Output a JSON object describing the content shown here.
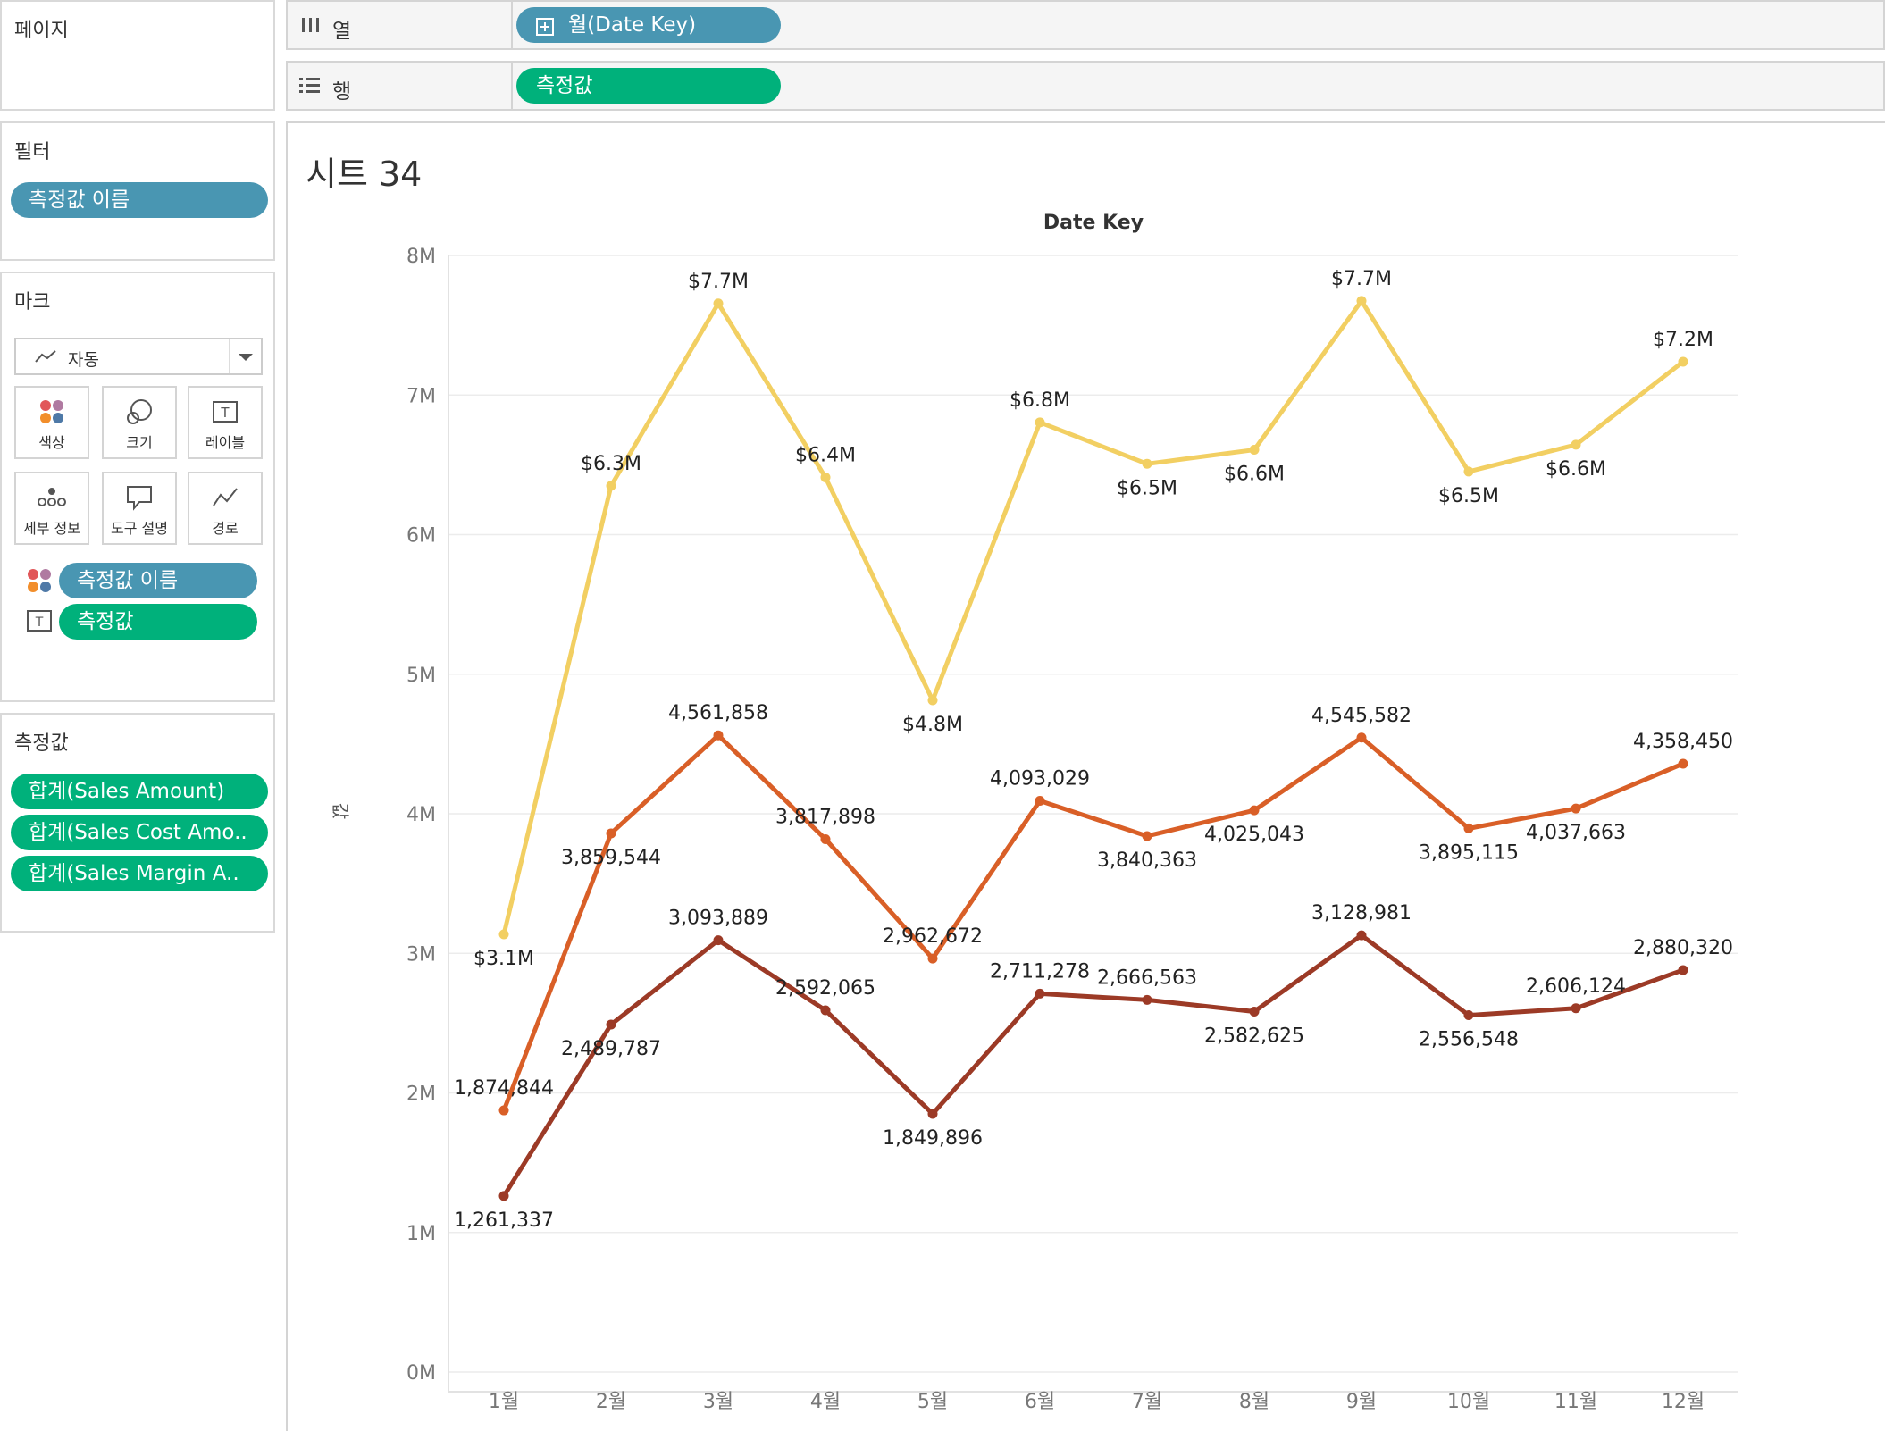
{
  "sidebar": {
    "pages_title": "페이지",
    "filters_title": "필터",
    "filter_pill": "측정값 이름",
    "marks_title": "마크",
    "mark_type": "자동",
    "mark_buttons": [
      "색상",
      "크기",
      "레이블",
      "세부 정보",
      "도구 설명",
      "경로"
    ],
    "mark_pills": [
      "측정값 이름",
      "측정값"
    ],
    "measures_title": "측정값",
    "measure_pills": [
      "합계(Sales Amount)",
      "합계(Sales Cost Amo..",
      "합계(Sales Margin A.."
    ]
  },
  "shelves": {
    "columns_label": "열",
    "columns_pill": "월(Date Key)",
    "rows_label": "행",
    "rows_pill": "측정값"
  },
  "sheet": {
    "title": "시트 34"
  },
  "colors": {
    "series": [
      "#f2cf62",
      "#d95f27",
      "#9c3a26"
    ],
    "pill_blue": "#4996b2",
    "pill_green": "#00b17b"
  },
  "chart_data": {
    "type": "line",
    "title": "Date Key",
    "xlabel": "Date Key",
    "ylabel": "값",
    "categories": [
      "1월",
      "2월",
      "3월",
      "4월",
      "5월",
      "6월",
      "7월",
      "8월",
      "9월",
      "10월",
      "11월",
      "12월"
    ],
    "y_ticks": [
      "0M",
      "1M",
      "2M",
      "3M",
      "4M",
      "5M",
      "6M",
      "7M",
      "8M"
    ],
    "ylim": [
      0,
      8000000
    ],
    "grid": true,
    "series": [
      {
        "values": [
          3136181,
          6349331,
          7655747,
          6409963,
          4812568,
          6804392,
          6506926,
          6607668,
          7674563,
          6451663,
          6643787,
          7238770
        ],
        "labels": [
          "$3.1M",
          "$6.3M",
          "$7.7M",
          "$6.4M",
          "$4.8M",
          "$6.8M",
          "$6.5M",
          "$6.6M",
          "$7.7M",
          "$6.5M",
          "$6.6M",
          "$7.2M"
        ]
      },
      {
        "values": [
          1874844,
          3859544,
          4561858,
          3817898,
          2962672,
          4093029,
          3840363,
          4025043,
          4545582,
          3895115,
          4037663,
          4358450
        ],
        "labels": [
          "1,874,844",
          "3,859,544",
          "4,561,858",
          "3,817,898",
          "2,962,672",
          "4,093,029",
          "3,840,363",
          "4,025,043",
          "4,545,582",
          "3,895,115",
          "4,037,663",
          "4,358,450"
        ]
      },
      {
        "values": [
          1261337,
          2489787,
          3093889,
          2592065,
          1849896,
          2711278,
          2666563,
          2582625,
          3128981,
          2556548,
          2606124,
          2880320
        ],
        "labels": [
          "1,261,337",
          "2,489,787",
          "3,093,889",
          "2,592,065",
          "1,849,896",
          "2,711,278",
          "2,666,563",
          "2,582,625",
          "3,128,981",
          "2,556,548",
          "2,606,124",
          "2,880,320"
        ]
      }
    ]
  }
}
